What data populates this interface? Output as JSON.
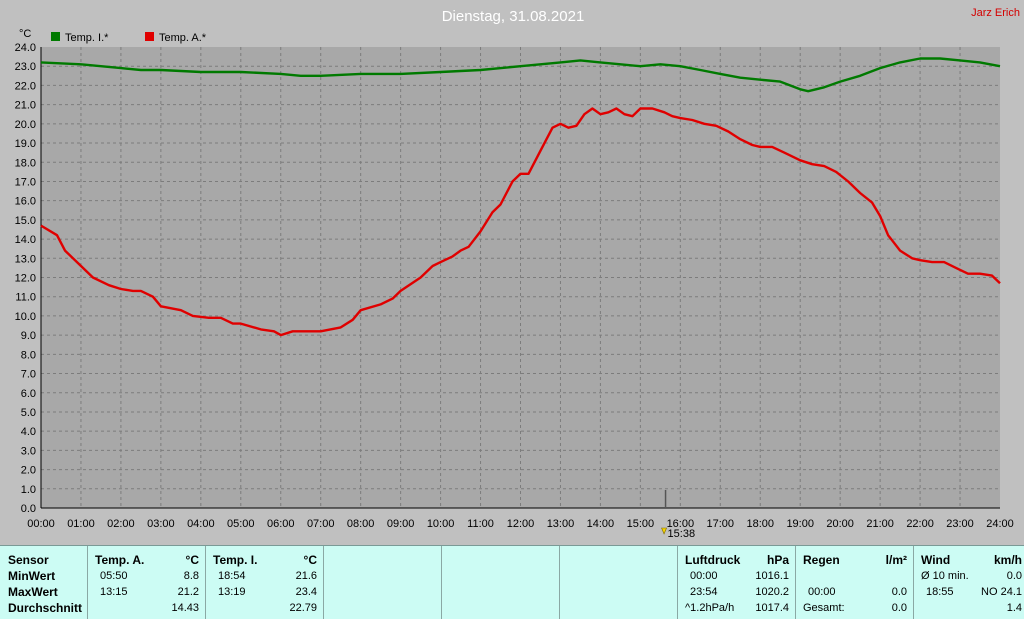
{
  "colors": {
    "plot_bg": "#a8a8a8",
    "grid": "#7c7c7c",
    "inside": "#007a00",
    "outside": "#e00000",
    "panel": "#ccfcf4"
  },
  "header": {
    "title": "Dienstag, 31.08.2021",
    "author": "Jarz Erich"
  },
  "chart_data": {
    "type": "line",
    "ylabel": "°C",
    "ylim": [
      0,
      24
    ],
    "xlim": [
      0,
      24
    ],
    "grid": true,
    "legend_position": "top-left",
    "x_ticks": [
      "00:00",
      "01:00",
      "02:00",
      "03:00",
      "04:00",
      "05:00",
      "06:00",
      "07:00",
      "08:00",
      "09:00",
      "10:00",
      "11:00",
      "12:00",
      "13:00",
      "14:00",
      "15:00",
      "16:00",
      "17:00",
      "18:00",
      "19:00",
      "20:00",
      "21:00",
      "22:00",
      "23:00",
      "24:00"
    ],
    "y_ticks": [
      "0.0",
      "1.0",
      "2.0",
      "3.0",
      "4.0",
      "5.0",
      "6.0",
      "7.0",
      "8.0",
      "9.0",
      "10.0",
      "11.0",
      "12.0",
      "13.0",
      "14.0",
      "15.0",
      "16.0",
      "17.0",
      "18.0",
      "19.0",
      "20.0",
      "21.0",
      "22.0",
      "23.0",
      "24.0"
    ],
    "marker": {
      "x": 15.63,
      "label": "15:38"
    },
    "series": [
      {
        "name": "Temp. I.*",
        "color": "#007a00",
        "points": [
          [
            0,
            23.2
          ],
          [
            1,
            23.1
          ],
          [
            2,
            22.9
          ],
          [
            2.5,
            22.8
          ],
          [
            3,
            22.8
          ],
          [
            4,
            22.7
          ],
          [
            5,
            22.7
          ],
          [
            6,
            22.6
          ],
          [
            6.5,
            22.5
          ],
          [
            7,
            22.5
          ],
          [
            8,
            22.6
          ],
          [
            9,
            22.6
          ],
          [
            10,
            22.7
          ],
          [
            11,
            22.8
          ],
          [
            12,
            23.0
          ],
          [
            13,
            23.2
          ],
          [
            13.5,
            23.3
          ],
          [
            14,
            23.2
          ],
          [
            14.5,
            23.1
          ],
          [
            15,
            23.0
          ],
          [
            15.5,
            23.1
          ],
          [
            16,
            23.0
          ],
          [
            16.5,
            22.8
          ],
          [
            17,
            22.6
          ],
          [
            17.5,
            22.4
          ],
          [
            18,
            22.3
          ],
          [
            18.5,
            22.2
          ],
          [
            19,
            21.8
          ],
          [
            19.2,
            21.7
          ],
          [
            19.6,
            21.9
          ],
          [
            20,
            22.2
          ],
          [
            20.5,
            22.5
          ],
          [
            21,
            22.9
          ],
          [
            21.5,
            23.2
          ],
          [
            22,
            23.4
          ],
          [
            22.5,
            23.4
          ],
          [
            23,
            23.3
          ],
          [
            23.5,
            23.2
          ],
          [
            24,
            23.0
          ]
        ]
      },
      {
        "name": "Temp. A.*",
        "color": "#e00000",
        "points": [
          [
            0,
            14.7
          ],
          [
            0.4,
            14.2
          ],
          [
            0.6,
            13.4
          ],
          [
            1,
            12.6
          ],
          [
            1.3,
            12.0
          ],
          [
            1.7,
            11.6
          ],
          [
            2,
            11.4
          ],
          [
            2.3,
            11.3
          ],
          [
            2.5,
            11.3
          ],
          [
            2.8,
            11.0
          ],
          [
            3,
            10.5
          ],
          [
            3.5,
            10.3
          ],
          [
            3.8,
            10.0
          ],
          [
            4.2,
            9.9
          ],
          [
            4.5,
            9.9
          ],
          [
            4.8,
            9.6
          ],
          [
            5,
            9.6
          ],
          [
            5.5,
            9.3
          ],
          [
            5.83,
            9.2
          ],
          [
            6,
            9.0
          ],
          [
            6.3,
            9.2
          ],
          [
            6.5,
            9.2
          ],
          [
            7,
            9.2
          ],
          [
            7.5,
            9.4
          ],
          [
            7.8,
            9.8
          ],
          [
            8,
            10.3
          ],
          [
            8.5,
            10.6
          ],
          [
            8.8,
            10.9
          ],
          [
            9,
            11.3
          ],
          [
            9.5,
            12.0
          ],
          [
            9.8,
            12.6
          ],
          [
            10,
            12.8
          ],
          [
            10.3,
            13.1
          ],
          [
            10.5,
            13.4
          ],
          [
            10.7,
            13.6
          ],
          [
            11,
            14.4
          ],
          [
            11.3,
            15.4
          ],
          [
            11.5,
            15.8
          ],
          [
            11.8,
            17.0
          ],
          [
            12,
            17.4
          ],
          [
            12.2,
            17.4
          ],
          [
            12.5,
            18.6
          ],
          [
            12.8,
            19.8
          ],
          [
            13,
            20.0
          ],
          [
            13.2,
            19.8
          ],
          [
            13.4,
            19.9
          ],
          [
            13.6,
            20.5
          ],
          [
            13.8,
            20.8
          ],
          [
            14,
            20.5
          ],
          [
            14.2,
            20.6
          ],
          [
            14.4,
            20.8
          ],
          [
            14.6,
            20.5
          ],
          [
            14.8,
            20.4
          ],
          [
            15,
            20.8
          ],
          [
            15.3,
            20.8
          ],
          [
            15.6,
            20.6
          ],
          [
            15.8,
            20.4
          ],
          [
            16,
            20.3
          ],
          [
            16.3,
            20.2
          ],
          [
            16.6,
            20.0
          ],
          [
            16.9,
            19.9
          ],
          [
            17.2,
            19.6
          ],
          [
            17.5,
            19.2
          ],
          [
            17.8,
            18.9
          ],
          [
            18,
            18.8
          ],
          [
            18.3,
            18.8
          ],
          [
            18.6,
            18.5
          ],
          [
            19,
            18.1
          ],
          [
            19.3,
            17.9
          ],
          [
            19.6,
            17.8
          ],
          [
            19.9,
            17.5
          ],
          [
            20.2,
            17.0
          ],
          [
            20.5,
            16.4
          ],
          [
            20.8,
            15.9
          ],
          [
            21,
            15.2
          ],
          [
            21.2,
            14.2
          ],
          [
            21.5,
            13.4
          ],
          [
            21.8,
            13.0
          ],
          [
            22,
            12.9
          ],
          [
            22.3,
            12.8
          ],
          [
            22.6,
            12.8
          ],
          [
            22.9,
            12.5
          ],
          [
            23.2,
            12.2
          ],
          [
            23.5,
            12.2
          ],
          [
            23.8,
            12.1
          ],
          [
            24,
            11.7
          ]
        ]
      }
    ]
  },
  "stats": {
    "sensor": {
      "header": "Sensor",
      "row1": "MinWert",
      "row2": "MaxWert",
      "row3": "Durchschnitt"
    },
    "temp_a": {
      "header": "Temp. A.",
      "unit": "°C",
      "min_time": "05:50",
      "min_val": "8.8",
      "max_time": "13:15",
      "max_val": "21.2",
      "avg": "14.43"
    },
    "temp_i": {
      "header": "Temp. I.",
      "unit": "°C",
      "min_time": "18:54",
      "min_val": "21.6",
      "max_time": "13:19",
      "max_val": "23.4",
      "avg": "22.79"
    },
    "luftdruck": {
      "header": "Luftdruck",
      "unit": "hPa",
      "r1_label": "00:00",
      "r1_val": "1016.1",
      "r2_label": "23:54",
      "r2_val": "1020.2",
      "r3_label": "^1.2hPa/h",
      "r3_val": "1017.4"
    },
    "regen": {
      "header": "Regen",
      "unit": "l/m²",
      "r2_label": "00:00",
      "r2_val": "0.0",
      "r3_label": "Gesamt:",
      "r3_val": "0.0"
    },
    "wind": {
      "header": "Wind",
      "unit": "km/h",
      "r1_label": "Ø 10 min.",
      "r1_val": "0.0",
      "r2_label": "18:55",
      "r2_val": "NO 24.1",
      "r3_val": "1.4"
    }
  }
}
